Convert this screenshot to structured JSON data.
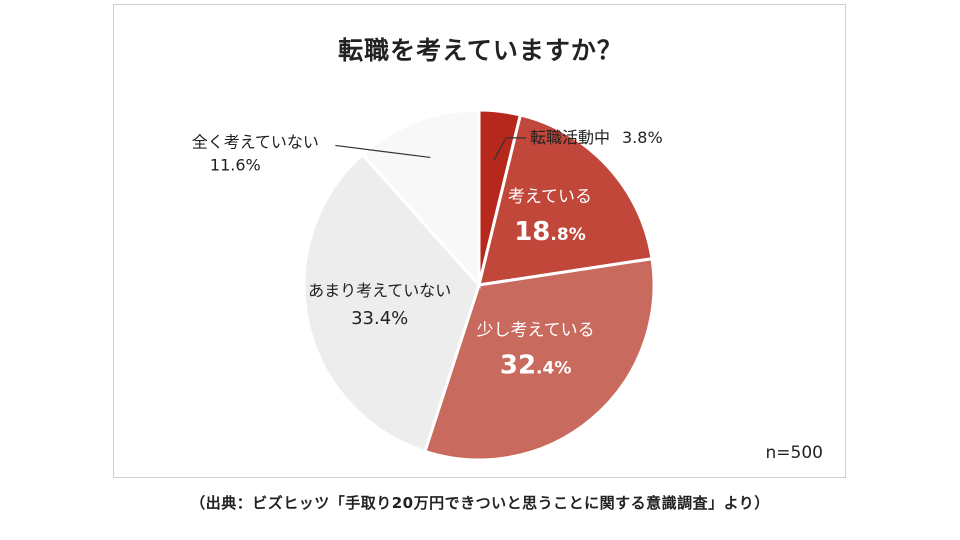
{
  "chart_data": {
    "type": "pie",
    "title": "転職を考えていますか？",
    "slices": [
      {
        "label": "転職活動中",
        "value": 3.8,
        "value_text": "3.8%",
        "color": "#b5281b"
      },
      {
        "label": "考えている",
        "value": 18.8,
        "value_text": "18.8%",
        "value_main": "18",
        "value_rest": ".8%",
        "color": "#c1473a"
      },
      {
        "label": "少し考えている",
        "value": 32.4,
        "value_text": "32.4%",
        "value_main": "32",
        "value_rest": ".4%",
        "color": "#c96a5e"
      },
      {
        "label": "あまり考えていない",
        "value": 33.4,
        "value_text": "33.4%",
        "color": "#ededed"
      },
      {
        "label": "全く考えていない",
        "value": 11.6,
        "value_text": "11.6%",
        "color": "#f8f8f8"
      }
    ],
    "sample_size": "n=500"
  },
  "source": "（出典：ビズヒッツ「手取り20万円できついと思うことに関する意識調査」より）"
}
